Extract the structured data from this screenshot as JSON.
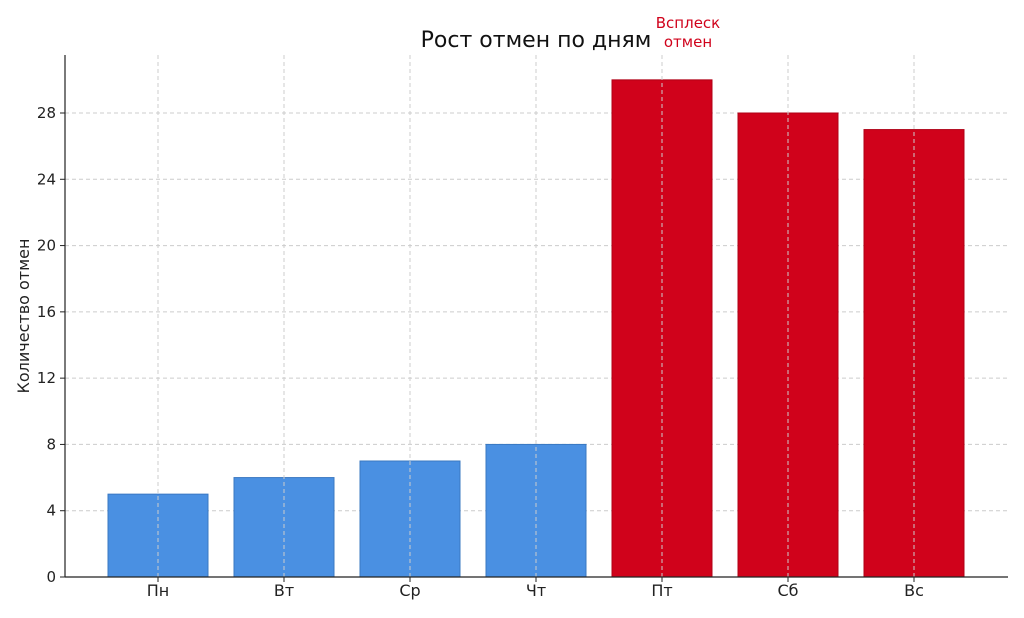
{
  "chart_data": {
    "type": "bar",
    "title": "Рост отмен по дням",
    "xlabel": "",
    "ylabel": "Количество отмен",
    "categories": [
      "Пн",
      "Вт",
      "Ср",
      "Чт",
      "Пт",
      "Сб",
      "Вс"
    ],
    "values": [
      5,
      6,
      7,
      8,
      30,
      28,
      27
    ],
    "bar_colors": [
      "#4a90e2",
      "#4a90e2",
      "#4a90e2",
      "#4a90e2",
      "#d0021b",
      "#d0021b",
      "#d0021b"
    ],
    "ylim": [
      0,
      31.5
    ],
    "yticks": [
      0,
      4,
      8,
      12,
      16,
      20,
      24,
      28
    ],
    "grid": true,
    "annotation": {
      "text_line1": "Всплеск",
      "text_line2": "отмен",
      "color": "#d0021b"
    }
  }
}
